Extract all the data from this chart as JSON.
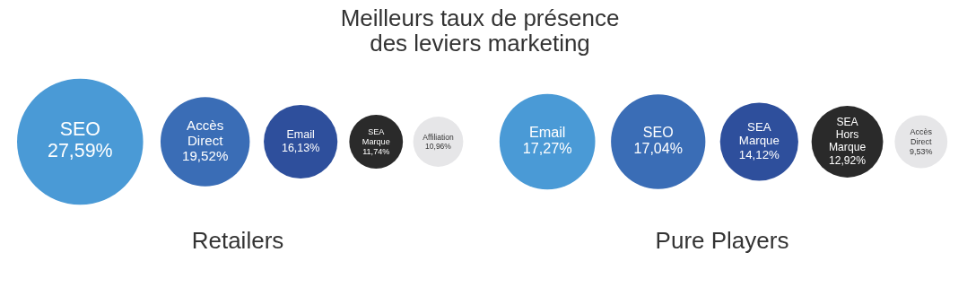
{
  "chart_data": [
    {
      "type": "other",
      "title": "Meilleurs taux de présence des leviers marketing",
      "xlabel": "Retailers",
      "categories": [
        "SEO",
        "Accès Direct",
        "Email",
        "SEA Marque",
        "Affiliation"
      ],
      "values": [
        27.59,
        19.52,
        16.13,
        11.74,
        10.96
      ],
      "value_labels": [
        "27,59%",
        "19,52%",
        "16,13%",
        "11,74%",
        "10,96%"
      ],
      "colors": [
        "#4a9ad6",
        "#3a6db6",
        "#2e4f9c",
        "#2a2a2a",
        "#e6e6e8"
      ]
    },
    {
      "type": "other",
      "xlabel": "Pure Players",
      "categories": [
        "Email",
        "SEO",
        "SEA Marque",
        "SEA Hors Marque",
        "Accès Direct"
      ],
      "values": [
        17.27,
        17.04,
        14.12,
        12.92,
        9.53
      ],
      "value_labels": [
        "17,27%",
        "17,04%",
        "14,12%",
        "12,92%",
        "9,53%"
      ],
      "colors": [
        "#4a9ad6",
        "#3a6db6",
        "#2e4f9c",
        "#2a2a2a",
        "#e6e6e8"
      ]
    }
  ]
}
